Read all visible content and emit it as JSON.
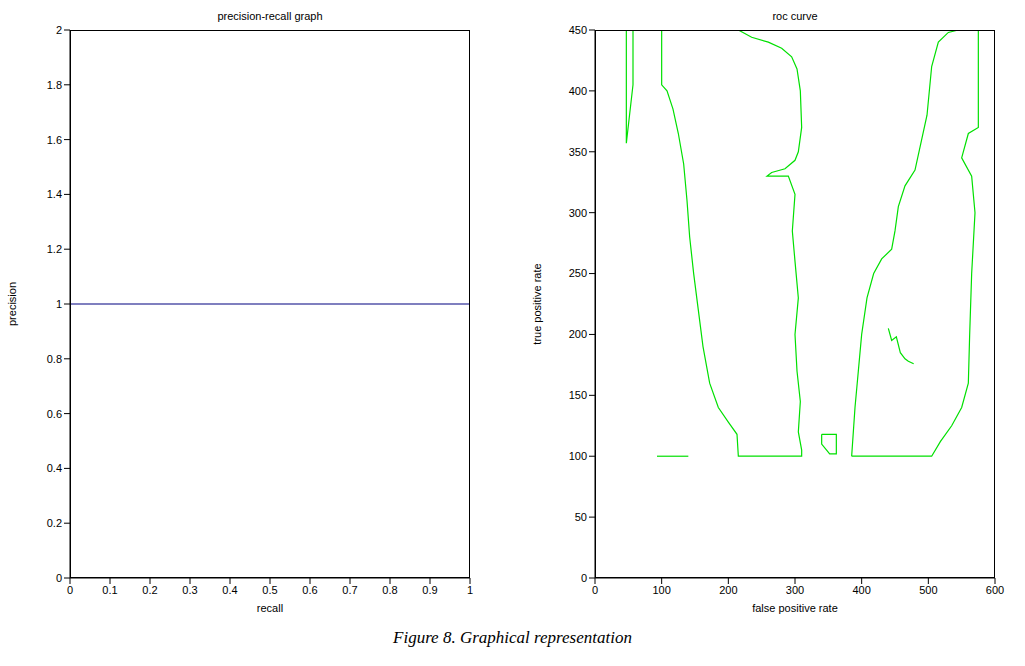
{
  "chart_data": [
    {
      "type": "line",
      "title": "precision-recall graph",
      "x_label": "recall",
      "y_label": "precision",
      "xlim": [
        0,
        1
      ],
      "xticks": [
        0,
        0.1,
        0.2,
        0.3,
        0.4,
        0.5,
        0.6,
        0.7,
        0.8,
        0.9,
        1
      ],
      "ylim": [
        0,
        2
      ],
      "yticks": [
        0,
        0.2,
        0.4,
        0.6,
        0.8,
        1,
        1.2,
        1.4,
        1.6,
        1.8,
        2
      ],
      "series": [
        {
          "color": "#000080",
          "x": [
            0,
            1
          ],
          "values": [
            1,
            1
          ]
        }
      ]
    },
    {
      "type": "line",
      "title": "roc curve",
      "x_label": "false positive rate",
      "y_label": "true positive rate",
      "xlim": [
        0,
        600
      ],
      "xticks": [
        0,
        100,
        200,
        300,
        400,
        500,
        600
      ],
      "ylim": [
        0,
        450
      ],
      "yticks": [
        0,
        50,
        100,
        150,
        200,
        250,
        300,
        350,
        400,
        450
      ],
      "series": [
        {
          "color": "#00e000",
          "x": [
            47,
            47,
            57,
            57,
            47
          ],
          "values": [
            357,
            450,
            450,
            405,
            357
          ]
        },
        {
          "color": "#00e000",
          "x": [
            100,
            215,
            235,
            260,
            280,
            295,
            303,
            308,
            310,
            305,
            300,
            285,
            265,
            258,
            290,
            300,
            296,
            300,
            305,
            300,
            303,
            308,
            305,
            310,
            310,
            215,
            213,
            200,
            185,
            172,
            162,
            155,
            148,
            142,
            138,
            133,
            125,
            117,
            108,
            100,
            100
          ],
          "values": [
            450,
            450,
            444,
            440,
            435,
            428,
            418,
            400,
            370,
            350,
            343,
            336,
            333,
            330,
            330,
            315,
            285,
            260,
            230,
            200,
            170,
            145,
            120,
            105,
            100,
            100,
            118,
            128,
            140,
            160,
            190,
            220,
            250,
            280,
            310,
            340,
            365,
            385,
            400,
            405,
            450
          ]
        },
        {
          "color": "#00e000",
          "x": [
            385,
            505,
            518,
            535,
            550,
            560,
            562,
            565,
            570,
            565,
            550,
            560,
            575,
            575,
            545,
            530,
            515,
            505,
            498,
            480,
            465,
            455,
            450,
            445,
            430,
            418,
            408,
            400,
            395,
            390,
            385
          ],
          "values": [
            100,
            100,
            112,
            125,
            140,
            160,
            200,
            250,
            300,
            330,
            345,
            365,
            370,
            450,
            450,
            448,
            440,
            420,
            380,
            335,
            322,
            305,
            285,
            270,
            262,
            250,
            230,
            200,
            170,
            140,
            100
          ]
        },
        {
          "color": "#00e000",
          "x": [
            340,
            362,
            362,
            352,
            340,
            340
          ],
          "values": [
            118,
            118,
            102,
            102,
            110,
            118
          ]
        },
        {
          "color": "#00e000",
          "x": [
            440,
            445,
            452,
            458,
            465,
            470,
            478
          ],
          "values": [
            205,
            195,
            198,
            185,
            180,
            178,
            176
          ]
        },
        {
          "color": "#00e000",
          "x": [
            93,
            140
          ],
          "values": [
            100,
            100
          ]
        }
      ]
    }
  ],
  "caption": "Figure 8. Graphical representation"
}
